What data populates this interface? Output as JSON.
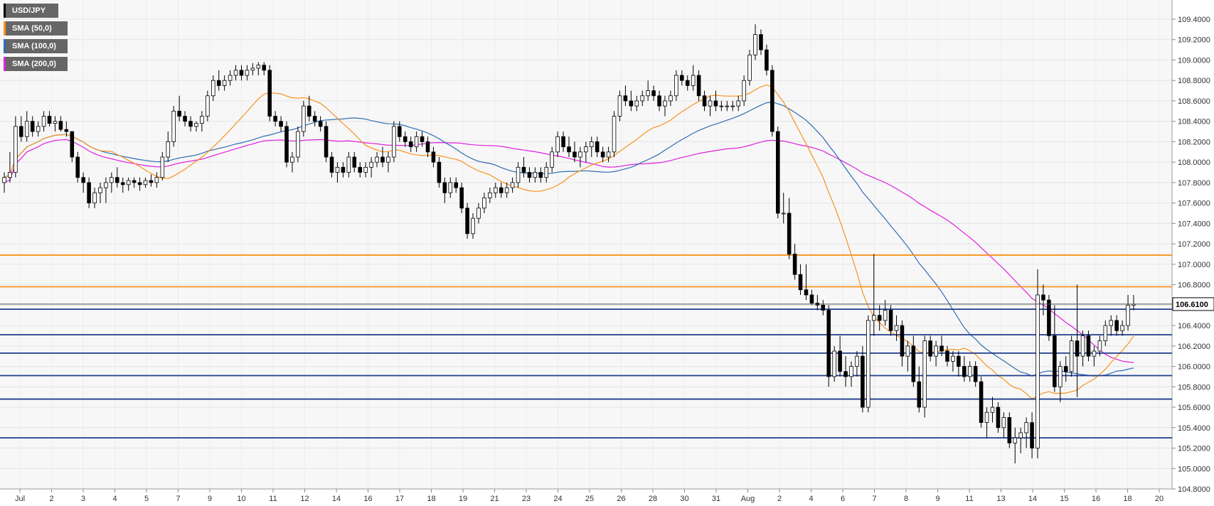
{
  "chart_data": {
    "type": "candlestick",
    "symbol": "USD/JPY",
    "last_price_label": "106.6100",
    "legend": [
      {
        "label": "USD/JPY",
        "color": "#000000"
      },
      {
        "label": "SMA (50,0)",
        "color": "#f7931e"
      },
      {
        "label": "SMA (100,0)",
        "color": "#2e6db4"
      },
      {
        "label": "SMA (200,0)",
        "color": "#e01fe0"
      }
    ],
    "y_axis": {
      "ticks": [
        "109.4000",
        "109.2000",
        "109.0000",
        "108.8000",
        "108.6000",
        "108.4000",
        "108.2000",
        "108.0000",
        "107.8000",
        "107.6000",
        "107.4000",
        "107.2000",
        "107.0000",
        "106.8000",
        "106.6000",
        "106.4000",
        "106.2000",
        "106.0000",
        "105.8000",
        "105.6000",
        "105.4000",
        "105.2000",
        "105.0000",
        "104.8000"
      ],
      "range": [
        104.8,
        109.5
      ]
    },
    "x_axis": {
      "ticks": [
        "Jul",
        "2",
        "3",
        "4",
        "5",
        "7",
        "9",
        "10",
        "11",
        "12",
        "14",
        "16",
        "17",
        "18",
        "19",
        "21",
        "23",
        "24",
        "25",
        "26",
        "28",
        "30",
        "31",
        "Aug",
        "2",
        "4",
        "6",
        "7",
        "8",
        "9",
        "11",
        "13",
        "14",
        "15",
        "16",
        "18",
        "20"
      ]
    },
    "horizontal_levels": [
      {
        "value": 107.09,
        "color": "#f7931e"
      },
      {
        "value": 106.78,
        "color": "#f7931e"
      },
      {
        "value": 106.56,
        "color": "#1f3d8f"
      },
      {
        "value": 106.31,
        "color": "#1f3d8f"
      },
      {
        "value": 106.13,
        "color": "#1f3d8f"
      },
      {
        "value": 105.91,
        "color": "#1f3d8f"
      },
      {
        "value": 105.68,
        "color": "#1f3d8f"
      },
      {
        "value": 105.3,
        "color": "#1f3d8f"
      }
    ],
    "current_price": 106.61,
    "candles": [
      [
        107.8,
        107.9,
        107.7,
        107.85
      ],
      [
        107.85,
        108.1,
        107.8,
        107.9
      ],
      [
        107.9,
        108.45,
        107.85,
        108.35
      ],
      [
        108.35,
        108.45,
        108.2,
        108.25
      ],
      [
        108.25,
        108.5,
        108.2,
        108.4
      ],
      [
        108.4,
        108.45,
        108.25,
        108.3
      ],
      [
        108.3,
        108.4,
        108.25,
        108.35
      ],
      [
        108.35,
        108.5,
        108.3,
        108.45
      ],
      [
        108.45,
        108.5,
        108.35,
        108.38
      ],
      [
        108.38,
        108.45,
        108.3,
        108.4
      ],
      [
        108.4,
        108.45,
        108.3,
        108.32
      ],
      [
        108.32,
        108.4,
        108.25,
        108.3
      ],
      [
        108.3,
        108.3,
        108.0,
        108.05
      ],
      [
        108.05,
        108.1,
        107.8,
        107.85
      ],
      [
        107.85,
        107.9,
        107.7,
        107.8
      ],
      [
        107.8,
        107.85,
        107.55,
        107.6
      ],
      [
        107.6,
        107.75,
        107.55,
        107.7
      ],
      [
        107.7,
        107.8,
        107.6,
        107.75
      ],
      [
        107.75,
        107.85,
        107.6,
        107.8
      ],
      [
        107.8,
        107.9,
        107.7,
        107.85
      ],
      [
        107.85,
        107.95,
        107.75,
        107.8
      ],
      [
        107.8,
        107.85,
        107.7,
        107.78
      ],
      [
        107.78,
        107.85,
        107.72,
        107.82
      ],
      [
        107.82,
        107.85,
        107.75,
        107.8
      ],
      [
        107.8,
        107.85,
        107.72,
        107.78
      ],
      [
        107.78,
        107.85,
        107.75,
        107.82
      ],
      [
        107.82,
        107.88,
        107.76,
        107.8
      ],
      [
        107.8,
        107.9,
        107.75,
        107.85
      ],
      [
        107.85,
        108.1,
        107.82,
        108.05
      ],
      [
        108.05,
        108.3,
        108.0,
        108.2
      ],
      [
        108.2,
        108.55,
        108.15,
        108.5
      ],
      [
        108.5,
        108.65,
        108.4,
        108.45
      ],
      [
        108.45,
        108.5,
        108.35,
        108.4
      ],
      [
        108.4,
        108.45,
        108.3,
        108.35
      ],
      [
        108.35,
        108.4,
        108.3,
        108.38
      ],
      [
        108.38,
        108.5,
        108.3,
        108.45
      ],
      [
        108.45,
        108.7,
        108.4,
        108.65
      ],
      [
        108.65,
        108.85,
        108.6,
        108.8
      ],
      [
        108.8,
        108.9,
        108.7,
        108.75
      ],
      [
        108.75,
        108.85,
        108.7,
        108.8
      ],
      [
        108.8,
        108.9,
        108.75,
        108.85
      ],
      [
        108.85,
        108.95,
        108.8,
        108.9
      ],
      [
        108.9,
        108.95,
        108.8,
        108.85
      ],
      [
        108.85,
        108.95,
        108.8,
        108.9
      ],
      [
        108.9,
        108.97,
        108.85,
        108.92
      ],
      [
        108.92,
        108.98,
        108.85,
        108.95
      ],
      [
        108.95,
        108.98,
        108.85,
        108.9
      ],
      [
        108.9,
        108.95,
        108.4,
        108.45
      ],
      [
        108.45,
        108.5,
        108.35,
        108.4
      ],
      [
        108.4,
        108.45,
        108.3,
        108.35
      ],
      [
        108.35,
        108.4,
        107.95,
        108.0
      ],
      [
        108.0,
        108.1,
        107.9,
        108.05
      ],
      [
        108.05,
        108.35,
        108.0,
        108.3
      ],
      [
        108.3,
        108.6,
        108.25,
        108.55
      ],
      [
        108.55,
        108.65,
        108.4,
        108.45
      ],
      [
        108.45,
        108.5,
        108.35,
        108.4
      ],
      [
        108.4,
        108.45,
        108.3,
        108.35
      ],
      [
        108.35,
        108.4,
        108.0,
        108.05
      ],
      [
        108.05,
        108.1,
        107.85,
        107.9
      ],
      [
        107.9,
        108.0,
        107.8,
        107.95
      ],
      [
        107.95,
        108.0,
        107.85,
        107.9
      ],
      [
        107.9,
        108.1,
        107.85,
        108.05
      ],
      [
        108.05,
        108.1,
        107.9,
        107.95
      ],
      [
        107.95,
        108.0,
        107.85,
        107.9
      ],
      [
        107.9,
        108.0,
        107.85,
        107.95
      ],
      [
        107.95,
        108.05,
        107.85,
        108.0
      ],
      [
        108.0,
        108.1,
        107.95,
        108.05
      ],
      [
        108.05,
        108.15,
        107.95,
        108.0
      ],
      [
        108.0,
        108.1,
        107.9,
        108.05
      ],
      [
        108.05,
        108.4,
        108.0,
        108.35
      ],
      [
        108.35,
        108.4,
        108.2,
        108.25
      ],
      [
        108.25,
        108.3,
        108.15,
        108.2
      ],
      [
        108.2,
        108.25,
        108.1,
        108.15
      ],
      [
        108.15,
        108.3,
        108.1,
        108.25
      ],
      [
        108.25,
        108.3,
        108.15,
        108.2
      ],
      [
        108.2,
        108.25,
        108.05,
        108.1
      ],
      [
        108.1,
        108.15,
        107.95,
        108.0
      ],
      [
        108.0,
        108.05,
        107.75,
        107.8
      ],
      [
        107.8,
        107.85,
        107.6,
        107.7
      ],
      [
        107.7,
        107.85,
        107.65,
        107.8
      ],
      [
        107.8,
        107.85,
        107.7,
        107.75
      ],
      [
        107.75,
        107.8,
        107.5,
        107.55
      ],
      [
        107.55,
        107.6,
        107.25,
        107.3
      ],
      [
        107.3,
        107.5,
        107.25,
        107.45
      ],
      [
        107.45,
        107.6,
        107.4,
        107.55
      ],
      [
        107.55,
        107.7,
        107.5,
        107.65
      ],
      [
        107.65,
        107.75,
        107.6,
        107.7
      ],
      [
        107.7,
        107.8,
        107.65,
        107.75
      ],
      [
        107.75,
        107.8,
        107.65,
        107.7
      ],
      [
        107.7,
        107.8,
        107.65,
        107.75
      ],
      [
        107.75,
        107.85,
        107.7,
        107.8
      ],
      [
        107.8,
        108.0,
        107.75,
        107.95
      ],
      [
        107.95,
        108.05,
        107.85,
        107.9
      ],
      [
        107.9,
        107.95,
        107.8,
        107.85
      ],
      [
        107.85,
        107.95,
        107.8,
        107.9
      ],
      [
        107.9,
        107.95,
        107.8,
        107.85
      ],
      [
        107.85,
        108.0,
        107.8,
        107.95
      ],
      [
        107.95,
        108.15,
        107.9,
        108.1
      ],
      [
        108.1,
        108.3,
        108.05,
        108.25
      ],
      [
        108.25,
        108.3,
        108.1,
        108.15
      ],
      [
        108.15,
        108.25,
        108.05,
        108.1
      ],
      [
        108.1,
        108.2,
        108.0,
        108.05
      ],
      [
        108.05,
        108.15,
        107.95,
        108.1
      ],
      [
        108.1,
        108.2,
        108.0,
        108.15
      ],
      [
        108.15,
        108.25,
        108.05,
        108.2
      ],
      [
        108.2,
        108.25,
        108.05,
        108.1
      ],
      [
        108.1,
        108.15,
        108.0,
        108.05
      ],
      [
        108.05,
        108.15,
        108.0,
        108.1
      ],
      [
        108.1,
        108.5,
        108.05,
        108.45
      ],
      [
        108.45,
        108.7,
        108.4,
        108.65
      ],
      [
        108.65,
        108.75,
        108.55,
        108.6
      ],
      [
        108.6,
        108.7,
        108.5,
        108.55
      ],
      [
        108.55,
        108.65,
        108.5,
        108.6
      ],
      [
        108.6,
        108.7,
        108.55,
        108.65
      ],
      [
        108.65,
        108.8,
        108.6,
        108.7
      ],
      [
        108.7,
        108.75,
        108.6,
        108.65
      ],
      [
        108.65,
        108.7,
        108.5,
        108.55
      ],
      [
        108.55,
        108.65,
        108.45,
        108.6
      ],
      [
        108.6,
        108.7,
        108.55,
        108.65
      ],
      [
        108.65,
        108.9,
        108.6,
        108.85
      ],
      [
        108.85,
        108.9,
        108.75,
        108.8
      ],
      [
        108.8,
        108.85,
        108.7,
        108.75
      ],
      [
        108.75,
        108.95,
        108.7,
        108.85
      ],
      [
        108.85,
        108.9,
        108.6,
        108.65
      ],
      [
        108.65,
        108.7,
        108.5,
        108.55
      ],
      [
        108.55,
        108.65,
        108.45,
        108.6
      ],
      [
        108.6,
        108.7,
        108.5,
        108.55
      ],
      [
        108.55,
        108.6,
        108.5,
        108.55
      ],
      [
        108.55,
        108.6,
        108.5,
        108.55
      ],
      [
        108.55,
        108.6,
        108.5,
        108.55
      ],
      [
        108.55,
        108.65,
        108.5,
        108.6
      ],
      [
        108.6,
        108.85,
        108.55,
        108.8
      ],
      [
        108.8,
        109.1,
        108.75,
        109.05
      ],
      [
        109.05,
        109.35,
        109.0,
        109.25
      ],
      [
        109.25,
        109.3,
        109.05,
        109.1
      ],
      [
        109.1,
        109.15,
        108.85,
        108.9
      ],
      [
        108.9,
        108.95,
        108.25,
        108.3
      ],
      [
        108.3,
        108.35,
        107.45,
        107.5
      ],
      [
        107.5,
        107.7,
        107.4,
        107.5
      ],
      [
        107.5,
        107.65,
        107.05,
        107.1
      ],
      [
        107.1,
        107.2,
        106.85,
        106.9
      ],
      [
        106.9,
        107.0,
        106.7,
        106.75
      ],
      [
        106.75,
        107.0,
        106.65,
        106.7
      ],
      [
        106.7,
        106.75,
        106.6,
        106.62
      ],
      [
        106.62,
        106.7,
        106.55,
        106.6
      ],
      [
        106.6,
        106.65,
        106.5,
        106.55
      ],
      [
        106.55,
        106.6,
        105.8,
        105.9
      ],
      [
        105.9,
        106.2,
        105.85,
        106.15
      ],
      [
        106.15,
        106.3,
        105.9,
        105.95
      ],
      [
        105.95,
        106.1,
        105.8,
        105.9
      ],
      [
        105.9,
        106.05,
        105.8,
        106.0
      ],
      [
        106.0,
        106.15,
        105.9,
        106.1
      ],
      [
        106.1,
        106.2,
        105.55,
        105.6
      ],
      [
        105.6,
        106.5,
        105.55,
        106.45
      ],
      [
        106.45,
        107.1,
        106.3,
        106.5
      ],
      [
        106.5,
        106.6,
        106.35,
        106.45
      ],
      [
        106.45,
        106.65,
        106.4,
        106.55
      ],
      [
        106.55,
        106.6,
        106.3,
        106.35
      ],
      [
        106.35,
        106.5,
        106.25,
        106.4
      ],
      [
        106.4,
        106.45,
        106.0,
        106.1
      ],
      [
        106.1,
        106.25,
        105.95,
        106.2
      ],
      [
        106.2,
        106.3,
        105.8,
        105.85
      ],
      [
        105.85,
        106.0,
        105.55,
        105.6
      ],
      [
        105.6,
        106.3,
        105.5,
        106.25
      ],
      [
        106.25,
        106.3,
        106.05,
        106.1
      ],
      [
        106.1,
        106.25,
        106.0,
        106.2
      ],
      [
        106.2,
        106.3,
        106.1,
        106.15
      ],
      [
        106.15,
        106.2,
        106.0,
        106.05
      ],
      [
        106.05,
        106.15,
        105.95,
        106.1
      ],
      [
        106.1,
        106.15,
        105.9,
        106.0
      ],
      [
        106.0,
        106.1,
        105.85,
        105.9
      ],
      [
        105.9,
        106.05,
        105.85,
        106.0
      ],
      [
        106.0,
        106.05,
        105.8,
        105.85
      ],
      [
        105.85,
        105.9,
        105.4,
        105.45
      ],
      [
        105.45,
        105.6,
        105.3,
        105.55
      ],
      [
        105.55,
        105.7,
        105.45,
        105.6
      ],
      [
        105.6,
        105.65,
        105.35,
        105.4
      ],
      [
        105.4,
        105.55,
        105.3,
        105.5
      ],
      [
        105.5,
        105.55,
        105.2,
        105.25
      ],
      [
        105.25,
        105.4,
        105.05,
        105.3
      ],
      [
        105.3,
        105.4,
        105.15,
        105.35
      ],
      [
        105.35,
        105.5,
        105.2,
        105.45
      ],
      [
        105.45,
        105.55,
        105.1,
        105.2
      ],
      [
        105.2,
        106.95,
        105.1,
        106.7
      ],
      [
        106.7,
        106.8,
        106.5,
        106.65
      ],
      [
        106.65,
        106.7,
        106.25,
        106.3
      ],
      [
        106.3,
        106.6,
        105.75,
        105.8
      ],
      [
        105.8,
        106.05,
        105.65,
        106.0
      ],
      [
        106.0,
        106.1,
        105.85,
        105.95
      ],
      [
        105.95,
        106.3,
        105.9,
        106.25
      ],
      [
        106.25,
        106.8,
        105.7,
        106.1
      ],
      [
        106.1,
        106.35,
        106.0,
        106.3
      ],
      [
        106.3,
        106.35,
        106.05,
        106.1
      ],
      [
        106.1,
        106.2,
        106.0,
        106.15
      ],
      [
        106.15,
        106.3,
        106.1,
        106.25
      ],
      [
        106.25,
        106.45,
        106.2,
        106.4
      ],
      [
        106.4,
        106.5,
        106.3,
        106.45
      ],
      [
        106.45,
        106.5,
        106.3,
        106.35
      ],
      [
        106.35,
        106.45,
        106.3,
        106.4
      ],
      [
        106.4,
        106.7,
        106.35,
        106.6
      ],
      [
        106.6,
        106.7,
        106.55,
        106.61
      ]
    ]
  }
}
